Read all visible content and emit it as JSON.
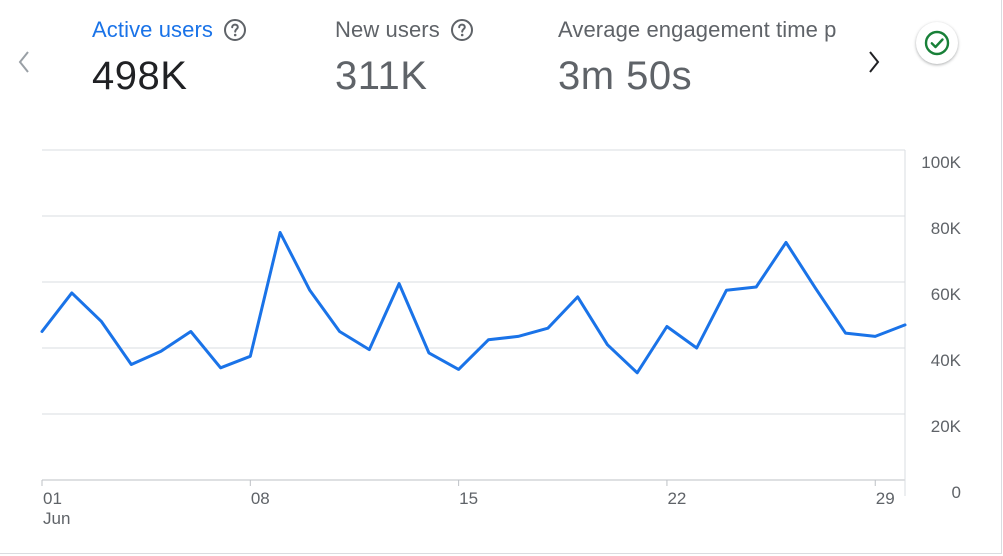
{
  "metrics": [
    {
      "label": "Active users",
      "value": "498K",
      "active": true
    },
    {
      "label": "New users",
      "value": "311K",
      "active": false
    },
    {
      "label": "Average engagement time p",
      "value": "3m 50s",
      "active": false
    }
  ],
  "icons": {
    "prev": "chevron-left-icon",
    "next": "chevron-right-icon",
    "help": "help-circle-icon",
    "status": "check-circle-icon"
  },
  "colors": {
    "accent": "#1a73e8",
    "line": "#1a73e8",
    "status_check": "#188038",
    "grid": "#dadce0",
    "muted_text": "#5f6368",
    "strong_text": "#202124"
  },
  "chart_data": {
    "type": "line",
    "x": [
      "2024-06-01",
      "2024-06-02",
      "2024-06-03",
      "2024-06-04",
      "2024-06-05",
      "2024-06-06",
      "2024-06-07",
      "2024-06-08",
      "2024-06-09",
      "2024-06-10",
      "2024-06-11",
      "2024-06-12",
      "2024-06-13",
      "2024-06-14",
      "2024-06-15",
      "2024-06-16",
      "2024-06-17",
      "2024-06-18",
      "2024-06-19",
      "2024-06-20",
      "2024-06-21",
      "2024-06-22",
      "2024-06-23",
      "2024-06-24",
      "2024-06-25",
      "2024-06-26",
      "2024-06-27",
      "2024-06-28",
      "2024-06-29",
      "2024-06-30"
    ],
    "series": [
      {
        "values": [
          45000,
          56700,
          48000,
          35000,
          39000,
          45000,
          34000,
          37500,
          75000,
          57500,
          45000,
          39500,
          59500,
          38500,
          33500,
          42500,
          43500,
          46000,
          55500,
          41000,
          32500,
          46500,
          40000,
          57500,
          58500,
          72000,
          58000,
          44500,
          43500,
          47000
        ]
      }
    ],
    "ylim": [
      0,
      100000
    ],
    "y_ticks": [
      "100K",
      "80K",
      "60K",
      "40K",
      "20K",
      "0"
    ],
    "x_ticks": [
      {
        "label": "01",
        "sublabel": "Jun"
      },
      {
        "label": "08",
        "sublabel": ""
      },
      {
        "label": "15",
        "sublabel": ""
      },
      {
        "label": "22",
        "sublabel": ""
      },
      {
        "label": "29",
        "sublabel": ""
      }
    ],
    "grid": true,
    "y_axis_position": "right"
  }
}
